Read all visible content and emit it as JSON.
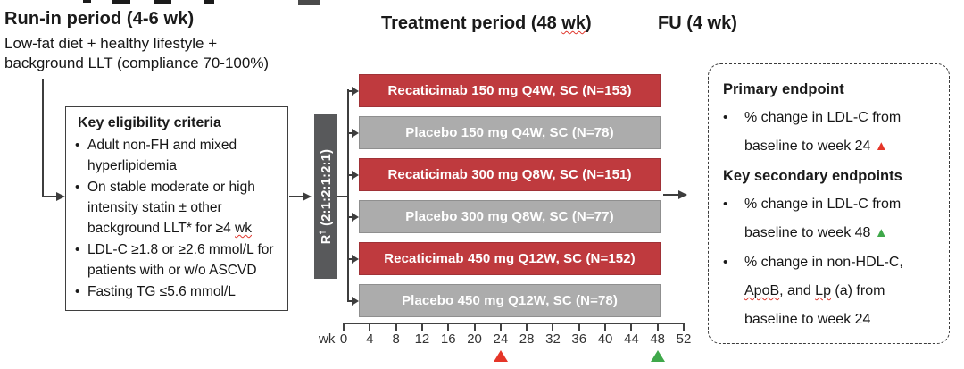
{
  "phases": {
    "run_in": {
      "title": "Run-in period (4-6 wk)",
      "line1": "Low-fat diet + healthy lifestyle +",
      "line2": "background LLT (compliance 70-100%)"
    },
    "treatment": {
      "title_pre": "Treatment period (48 ",
      "wk": "wk",
      "title_post": ")"
    },
    "follow_up": {
      "title": "FU (4 wk)"
    }
  },
  "eligibility": {
    "title": "Key eligibility criteria",
    "bullet": "•",
    "item1": "Adult non-FH and mixed hyperlipidemia",
    "item2_pre": "On stable moderate or high intensity statin ± other background LLT* for ≥4 ",
    "item2_wk": "wk",
    "item3": "LDL-C ≥1.8 or ≥2.6 mmol/L for patients with or w/o ASCVD",
    "item4": "Fasting TG ≤5.6 mmol/L"
  },
  "randomization": {
    "r": "R",
    "dagger": "†",
    "ratio": " (2:1:2:1:2:1)"
  },
  "arms": [
    {
      "label": "Recaticimab 150 mg Q4W, SC (N=153)",
      "type": "treatment"
    },
    {
      "label": "Placebo 150 mg Q4W, SC (N=78)",
      "type": "placebo"
    },
    {
      "label": "Recaticimab 300 mg Q8W, SC (N=151)",
      "type": "treatment"
    },
    {
      "label": "Placebo 300 mg Q8W, SC (N=77)",
      "type": "placebo"
    },
    {
      "label": "Recaticimab 450 mg Q12W, SC (N=152)",
      "type": "treatment"
    },
    {
      "label": "Placebo 450 mg Q12W, SC (N=78)",
      "type": "placebo"
    }
  ],
  "axis": {
    "unit": "wk",
    "ticks": [
      "0",
      "4",
      "8",
      "12",
      "16",
      "20",
      "24",
      "28",
      "32",
      "36",
      "40",
      "44",
      "48",
      "52"
    ],
    "red_marker_week": 24,
    "green_marker_week": 48
  },
  "endpoints": {
    "primary_title": "Primary endpoint",
    "bullet": "•",
    "primary_item_text": "% change in LDL-C from baseline to week 24 ",
    "primary_item_marker": "▲",
    "secondary_title": "Key secondary endpoints",
    "secondary_item1_text": "% change in LDL-C from baseline to week 48 ",
    "secondary_item1_marker": "▲",
    "secondary_item2_part1": "% change in non-HDL-C, ",
    "secondary_item2_sq1": "ApoB",
    "secondary_item2_part2": ", and ",
    "secondary_item2_sq2": "Lp",
    "secondary_item2_part3": " (a) from baseline to week 24"
  },
  "colors": {
    "treatment_bar": "#BF3A3E",
    "placebo_bar": "#ACACAC",
    "randomization_bar": "#58595B",
    "red_marker": "#E53528",
    "green_marker": "#3FA84A",
    "squiggle": "#E0362C"
  }
}
